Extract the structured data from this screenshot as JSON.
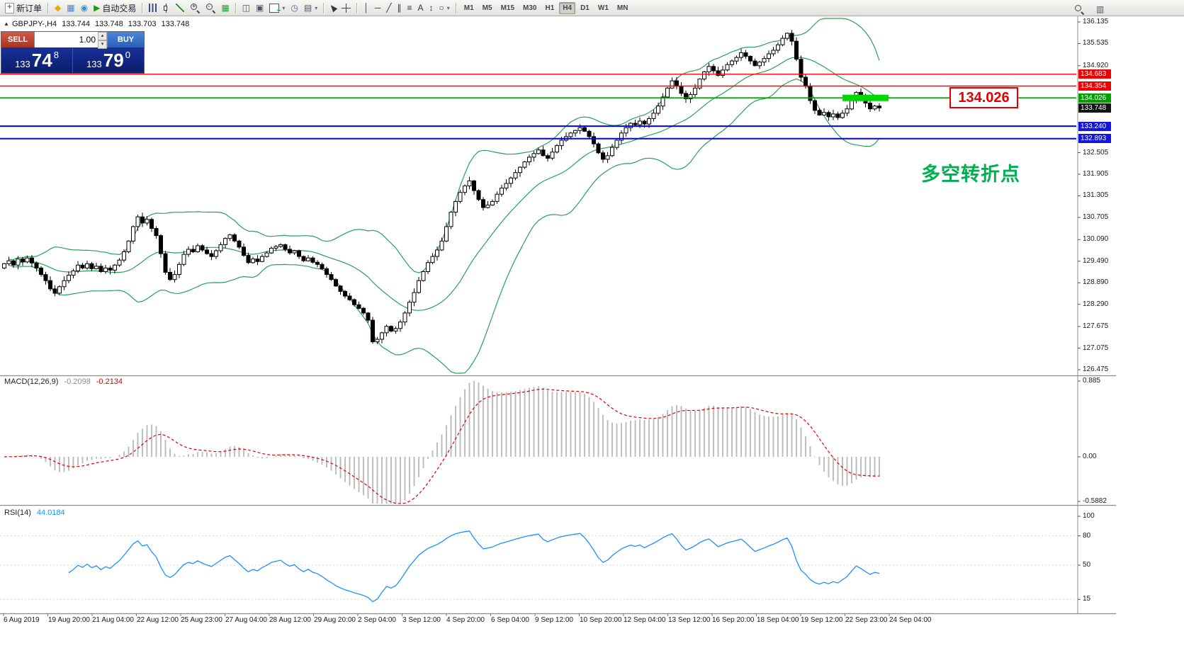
{
  "icons": {
    "spinner_up": "▴",
    "spinner_down": "▾",
    "caret": "▾"
  },
  "toolbar": {
    "items": [
      {
        "name": "new-order-button",
        "kind": "labeled",
        "icon_css": "i-doc",
        "glyph": "+",
        "color": "#1f9d3a",
        "label": "新订单"
      },
      {
        "kind": "sep"
      },
      {
        "name": "market-watch-icon",
        "kind": "icon",
        "glyph": "◆",
        "color": "#e8a817"
      },
      {
        "name": "data-window-icon",
        "kind": "icon",
        "glyph": "▦",
        "color": "#4a7ec2"
      },
      {
        "name": "navigator-icon",
        "kind": "icon",
        "glyph": "◉",
        "color": "#3a8fc8"
      },
      {
        "name": "autotrading-button",
        "kind": "labeled",
        "glyph": "▶",
        "color": "#17a017",
        "label": "自动交易"
      },
      {
        "kind": "sep"
      },
      {
        "name": "bar-chart-type-icon",
        "kind": "cssicon",
        "css": "i-bars"
      },
      {
        "name": "candlestick-chart-type-icon",
        "kind": "cssicon",
        "css": "i-candle"
      },
      {
        "name": "line-chart-type-icon",
        "kind": "cssicon",
        "css": "i-line"
      },
      {
        "name": "zoom-in-icon",
        "kind": "cssicon",
        "css": "i-zoom",
        "sign": "+"
      },
      {
        "name": "zoom-out-icon",
        "kind": "cssicon",
        "css": "i-zoom",
        "sign": "-"
      },
      {
        "name": "grid-icon",
        "kind": "icon",
        "glyph": "▦",
        "color": "#1f9d3a"
      },
      {
        "kind": "sep"
      },
      {
        "name": "tile-windows-icon",
        "kind": "icon",
        "glyph": "◫",
        "color": "#556"
      },
      {
        "name": "cascade-windows-icon",
        "kind": "icon",
        "glyph": "▣",
        "color": "#556"
      },
      {
        "name": "new-chart-button",
        "kind": "cssicon",
        "css": "i-newchart",
        "caret": true
      },
      {
        "name": "period-clock-icon",
        "kind": "icon",
        "glyph": "◷",
        "color": "#2f6fc0"
      },
      {
        "name": "templates-icon",
        "kind": "icon",
        "glyph": "▤",
        "color": "#556",
        "caret": true
      },
      {
        "kind": "sep"
      },
      {
        "name": "cursor-tool-icon",
        "kind": "cssicon",
        "css": "i-cursor"
      },
      {
        "name": "crosshair-tool-icon",
        "kind": "cssicon",
        "css": "i-crosshair"
      },
      {
        "kind": "sep"
      },
      {
        "name": "vertical-line-tool-icon",
        "kind": "icon",
        "glyph": "│",
        "color": "#334"
      },
      {
        "name": "horizontal-line-tool-icon",
        "kind": "icon",
        "glyph": "─",
        "color": "#334"
      },
      {
        "name": "trendline-tool-icon",
        "kind": "icon",
        "glyph": "╱",
        "color": "#334"
      },
      {
        "name": "channel-tool-icon",
        "kind": "icon",
        "glyph": "∥",
        "color": "#334"
      },
      {
        "name": "fibonacci-tool-icon",
        "kind": "icon",
        "glyph": "≡",
        "color": "#334"
      },
      {
        "name": "text-tool-icon",
        "kind": "icon",
        "glyph": "A",
        "color": "#334"
      },
      {
        "name": "arrows-tool-icon",
        "kind": "icon",
        "glyph": "↕",
        "color": "#334"
      },
      {
        "name": "shapes-tool-icon",
        "kind": "icon",
        "glyph": "○",
        "color": "#334",
        "caret": true
      },
      {
        "kind": "sep"
      }
    ],
    "timeframes": [
      {
        "label": "M1"
      },
      {
        "label": "M5"
      },
      {
        "label": "M15"
      },
      {
        "label": "M30"
      },
      {
        "label": "H1"
      },
      {
        "label": "H4",
        "active": true
      },
      {
        "label": "D1"
      },
      {
        "label": "W1"
      },
      {
        "label": "MN"
      }
    ],
    "right_items": [
      {
        "name": "search-icon",
        "kind": "cssicon",
        "css": "i-zoom"
      },
      {
        "name": "windows-layout-icon",
        "kind": "icon",
        "glyph": "▥",
        "color": "#556"
      }
    ]
  },
  "chart_header": {
    "collapse_icon": "▲",
    "symbol_period": "GBPJPY-,H4",
    "open": "133.744",
    "high": "133.748",
    "low": "133.703",
    "close": "133.748"
  },
  "trade_panel": {
    "sell_label": "SELL",
    "buy_label": "BUY",
    "volume": "1.00",
    "sell_price": {
      "small": "133",
      "big": "74",
      "sup": "8"
    },
    "buy_price": {
      "small": "133",
      "big": "79",
      "sup": "0"
    }
  },
  "annotations": {
    "price_callout": "134.026",
    "turning_point_note": "多空转折点"
  },
  "price_scale": {
    "plain": [
      "136.135",
      "135.535",
      "134.920",
      "132.505",
      "131.905",
      "131.305",
      "130.705",
      "130.090",
      "129.490",
      "128.890",
      "128.290",
      "127.675",
      "127.075",
      "126.475"
    ],
    "tags": [
      {
        "text": "134.683",
        "price": 134.683,
        "bg": "#f00000"
      },
      {
        "text": "134.354",
        "price": 134.354,
        "bg": "#f00000"
      },
      {
        "text": "134.026",
        "price": 134.026,
        "bg": "#00a000"
      },
      {
        "text": "133.748",
        "price": 133.748,
        "bg": "#141414"
      },
      {
        "text": "133.240",
        "price": 133.24,
        "bg": "#1414e0"
      },
      {
        "text": "132.893",
        "price": 132.893,
        "bg": "#1414e0"
      }
    ]
  },
  "chart_data": {
    "type": "candlestick",
    "symbol": "GBPJPY-",
    "timeframe": "H4",
    "y_axis": {
      "visible_range": [
        126.475,
        136.135
      ]
    },
    "x_axis": {
      "labels": [
        "6 Aug 2019",
        "19 Aug 20:00",
        "21 Aug 04:00",
        "22 Aug 12:00",
        "25 Aug 23:00",
        "27 Aug 04:00",
        "28 Aug 12:00",
        "29 Aug 20:00",
        "2 Sep 04:00",
        "3 Sep 12:00",
        "4 Sep 20:00",
        "6 Sep 04:00",
        "9 Sep 12:00",
        "10 Sep 20:00",
        "12 Sep 04:00",
        "13 Sep 12:00",
        "16 Sep 20:00",
        "18 Sep 04:00",
        "19 Sep 12:00",
        "22 Sep 23:00",
        "24 Sep 04:00"
      ]
    },
    "first_open": 129.3,
    "closes": [
      129.42,
      129.5,
      129.38,
      129.55,
      129.47,
      129.58,
      129.44,
      129.3,
      129.12,
      128.95,
      128.72,
      128.6,
      128.78,
      128.95,
      129.1,
      129.22,
      129.38,
      129.3,
      129.42,
      129.28,
      129.35,
      129.2,
      129.3,
      129.24,
      129.38,
      129.52,
      129.75,
      130.05,
      130.45,
      130.72,
      130.55,
      130.65,
      130.4,
      130.2,
      129.7,
      129.18,
      128.98,
      129.12,
      129.4,
      129.68,
      129.82,
      129.75,
      129.92,
      129.8,
      129.7,
      129.62,
      129.78,
      129.95,
      130.12,
      130.22,
      130.05,
      129.88,
      129.65,
      129.45,
      129.55,
      129.48,
      129.62,
      129.72,
      129.85,
      129.9,
      129.95,
      129.82,
      129.72,
      129.78,
      129.62,
      129.5,
      129.58,
      129.46,
      129.4,
      129.28,
      129.12,
      128.98,
      128.8,
      128.65,
      128.52,
      128.42,
      128.28,
      128.18,
      128.05,
      127.85,
      127.25,
      127.32,
      127.5,
      127.68,
      127.55,
      127.62,
      127.8,
      128.05,
      128.35,
      128.62,
      128.95,
      129.2,
      129.45,
      129.62,
      129.8,
      130.05,
      130.45,
      130.85,
      131.15,
      131.4,
      131.58,
      131.72,
      131.45,
      131.2,
      130.98,
      131.05,
      131.15,
      131.35,
      131.52,
      131.65,
      131.8,
      131.95,
      132.1,
      132.25,
      132.38,
      132.48,
      132.58,
      132.42,
      132.35,
      132.52,
      132.7,
      132.85,
      132.95,
      133.05,
      133.12,
      133.2,
      133.1,
      132.95,
      132.75,
      132.5,
      132.32,
      132.42,
      132.65,
      132.85,
      133.05,
      133.2,
      133.32,
      133.28,
      133.38,
      133.3,
      133.45,
      133.6,
      133.8,
      134.05,
      134.3,
      134.5,
      134.35,
      134.15,
      134.0,
      134.12,
      134.3,
      134.55,
      134.75,
      134.9,
      134.78,
      134.65,
      134.8,
      134.95,
      135.05,
      135.15,
      135.28,
      135.18,
      135.05,
      134.92,
      135.02,
      135.12,
      135.25,
      135.35,
      135.5,
      135.68,
      135.82,
      135.6,
      135.1,
      134.6,
      134.35,
      133.95,
      133.68,
      133.55,
      133.62,
      133.5,
      133.58,
      133.48,
      133.6,
      133.72,
      133.95,
      134.18,
      134.05,
      133.88,
      133.72,
      133.8,
      133.748
    ],
    "price_lines": [
      {
        "price": 134.683,
        "color": "#ff0000",
        "width": 1.4
      },
      {
        "price": 134.354,
        "color": "#ff0000",
        "width": 1.4
      },
      {
        "price": 134.026,
        "color": "#00a000",
        "width": 1.6
      },
      {
        "price": 133.24,
        "color": "#0000ff",
        "width": 2
      },
      {
        "price": 132.893,
        "color": "#0000ff",
        "width": 2
      }
    ],
    "highlight": {
      "price": 134.026,
      "from_bar": 182,
      "to_bar": 192,
      "color": "#00d800"
    },
    "indicators": {
      "bollinger": {
        "period": 20,
        "deviation": 2,
        "color": "#2aa05a"
      },
      "macd": {
        "label": "MACD(12,26,9)",
        "main_value": "-0.2098",
        "signal_value": "-0.2134",
        "hist_color": "#b8b8b8",
        "signal_color": "#e00000",
        "scale_labels": [
          "0.885",
          "0.00",
          "-0.5882"
        ]
      },
      "rsi": {
        "label": "RSI(14)",
        "value": "44.0184",
        "color": "#1e90ff",
        "levels": [
          80,
          50,
          15
        ],
        "scale_labels": [
          "100",
          "80",
          "50",
          "15"
        ]
      }
    }
  }
}
